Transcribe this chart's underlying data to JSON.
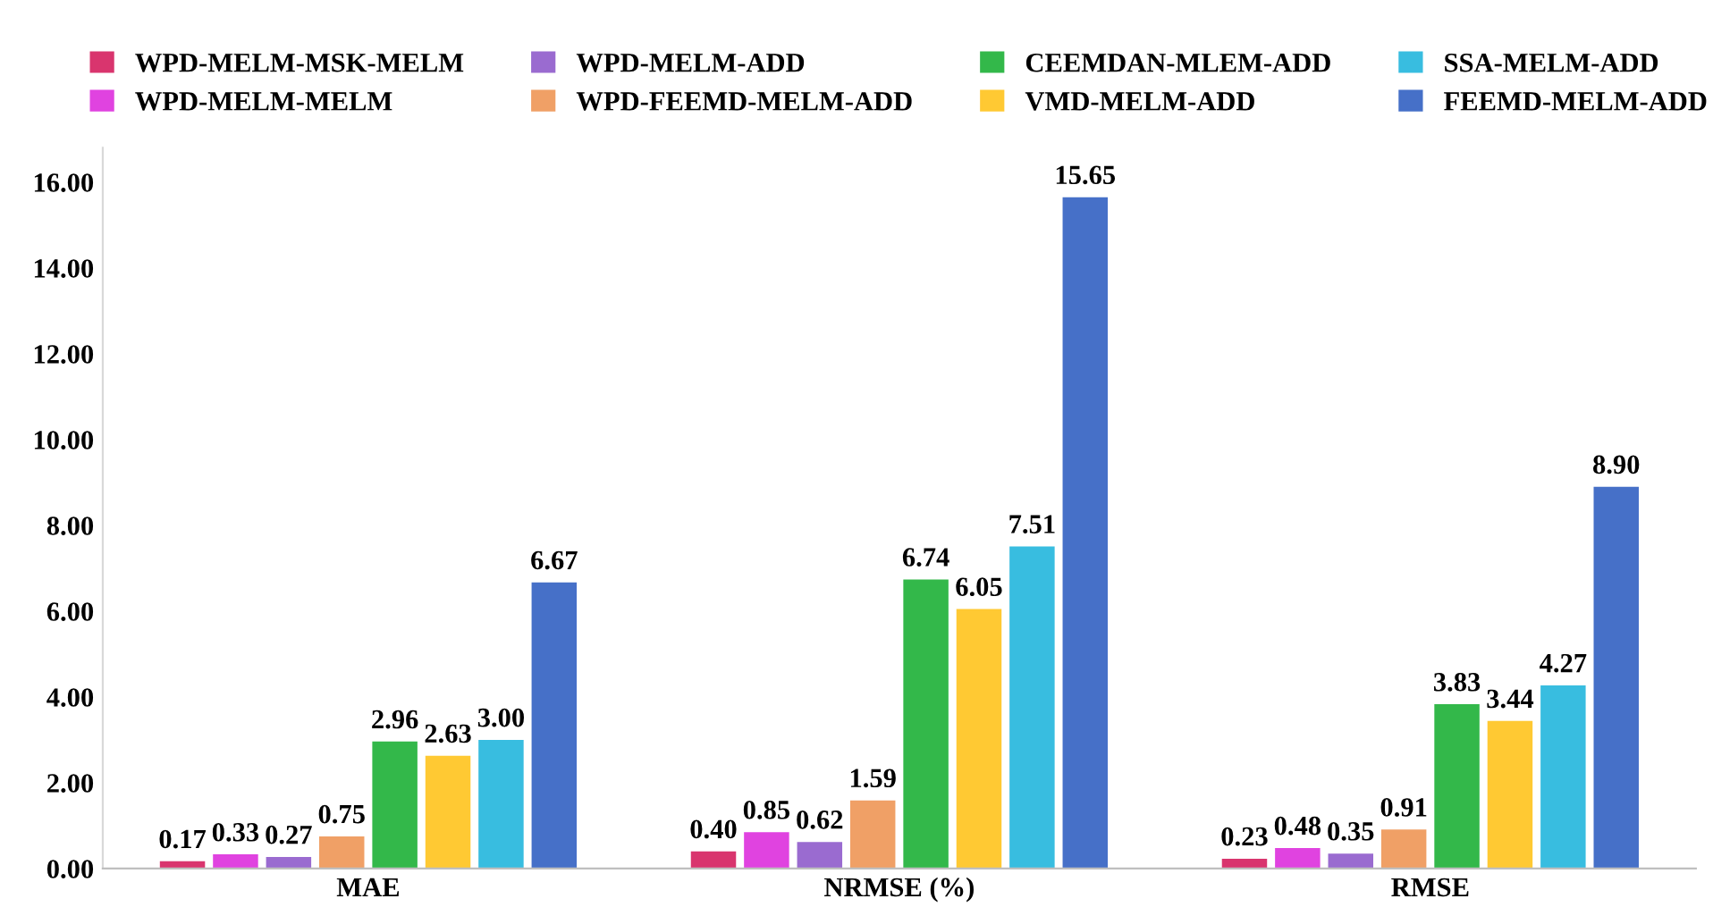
{
  "chart_data": {
    "type": "bar",
    "categories": [
      "MAE",
      "NRMSE (%)",
      "RMSE"
    ],
    "series": [
      {
        "name": "WPD-MELM-MSK-MELM",
        "color": "#d9356e",
        "values": [
          0.17,
          0.4,
          0.23
        ],
        "value_labels": [
          "0.17",
          "0.40",
          "0.23"
        ]
      },
      {
        "name": "WPD-MELM-MELM",
        "color": "#e043e0",
        "values": [
          0.33,
          0.85,
          0.48
        ],
        "value_labels": [
          "0.33",
          "0.85",
          "0.48"
        ]
      },
      {
        "name": "WPD-MELM-ADD",
        "color": "#9a6bd0",
        "values": [
          0.27,
          0.62,
          0.35
        ],
        "value_labels": [
          "0.27",
          "0.62",
          "0.35"
        ]
      },
      {
        "name": "WPD-FEEMD-MELM-ADD",
        "color": "#f0a066",
        "values": [
          0.75,
          1.59,
          0.91
        ],
        "value_labels": [
          "0.75",
          "1.59",
          "0.91"
        ]
      },
      {
        "name": "CEEMDAN-MLEM-ADD",
        "color": "#33b84a",
        "values": [
          2.96,
          6.74,
          3.83
        ],
        "value_labels": [
          "2.96",
          "6.74",
          "3.83"
        ]
      },
      {
        "name": "VMD-MELM-ADD",
        "color": "#ffc933",
        "values": [
          2.63,
          6.05,
          3.44
        ],
        "value_labels": [
          "2.63",
          "6.05",
          "3.44"
        ]
      },
      {
        "name": "SSA-MELM-ADD",
        "color": "#38bde0",
        "values": [
          3.0,
          7.51,
          4.27
        ],
        "value_labels": [
          "3.00",
          "7.51",
          "4.27"
        ]
      },
      {
        "name": "FEEMD-MELM-ADD",
        "color": "#4670c8",
        "values": [
          6.67,
          15.65,
          8.9
        ],
        "value_labels": [
          "6.67",
          "15.65",
          "8.90"
        ]
      }
    ],
    "ylim": [
      0,
      16.8
    ],
    "yticks": [
      {
        "value": 0,
        "label": "0.00"
      },
      {
        "value": 2,
        "label": "2.00"
      },
      {
        "value": 4,
        "label": "4.00"
      },
      {
        "value": 6,
        "label": "6.00"
      },
      {
        "value": 8,
        "label": "8.00"
      },
      {
        "value": 10,
        "label": "10.00"
      },
      {
        "value": 12,
        "label": "12.00"
      },
      {
        "value": 14,
        "label": "14.00"
      },
      {
        "value": 16,
        "label": "16.00"
      }
    ],
    "grid": false,
    "legend": "top"
  }
}
